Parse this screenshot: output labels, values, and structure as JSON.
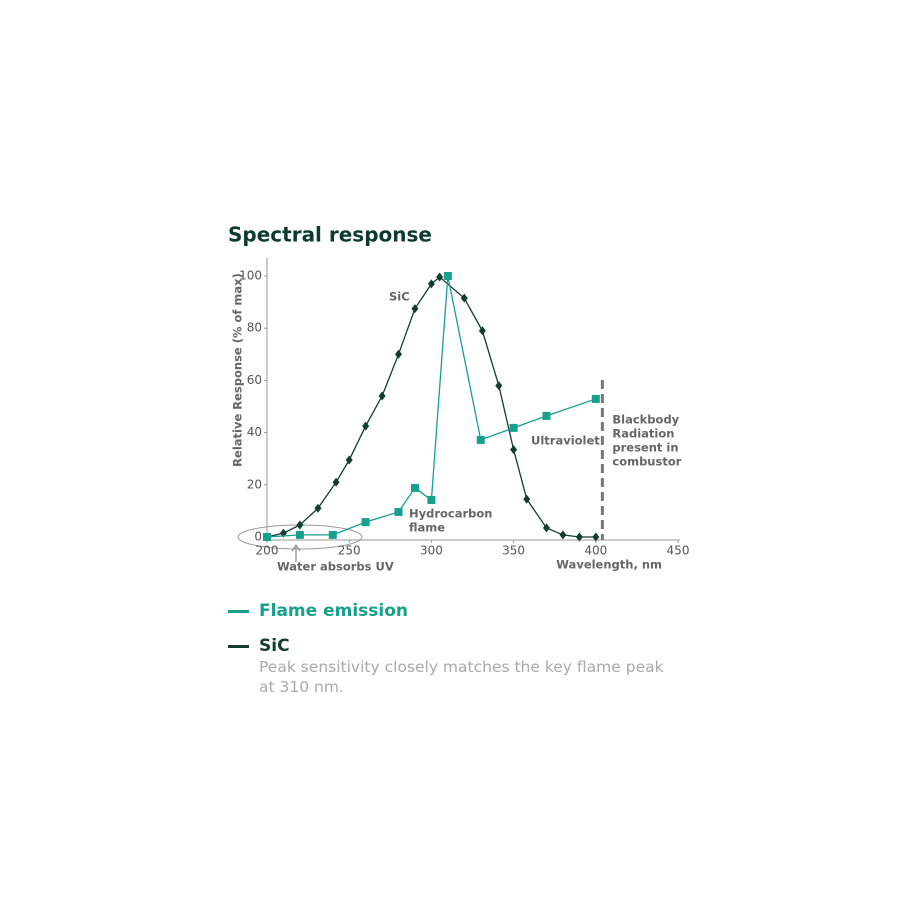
{
  "chart_data": {
    "type": "line",
    "title": "Spectral response",
    "y_label": "Relative Response (% of max)",
    "x_label": "Wavelength, nm",
    "xlim": [
      200,
      450
    ],
    "xticks": [
      200,
      250,
      300,
      350,
      400,
      450
    ],
    "ylim": [
      0,
      100
    ],
    "yticks": [
      0,
      20,
      40,
      60,
      80,
      100
    ],
    "grid": false,
    "series": [
      {
        "name": "Flame emission",
        "color": "#17a08c",
        "marker": "square",
        "x": [
          200,
          220,
          240,
          260,
          280,
          290,
          300,
          310,
          330,
          350,
          370,
          400
        ],
        "values": [
          0,
          0.8,
          0.8,
          5.7,
          9.6,
          18.8,
          14.2,
          100,
          37.2,
          41.8,
          46.4,
          52.9
        ]
      },
      {
        "name": "SiC",
        "color": "#123d2f",
        "marker": "diamond",
        "x": [
          200,
          210,
          220,
          231,
          242,
          250,
          260,
          270,
          280,
          290,
          300,
          305,
          320,
          331,
          341,
          350,
          358,
          370,
          380,
          390,
          400
        ],
        "values": [
          0,
          1.5,
          4.6,
          11,
          21,
          29.5,
          42.5,
          54,
          70,
          87.5,
          97,
          99.6,
          91.5,
          79,
          58,
          33.5,
          14.5,
          3.5,
          0.8,
          0,
          0
        ]
      }
    ],
    "reference_line": {
      "x": 404,
      "label": [
        "Blackbody",
        "Radiation",
        "present in",
        "combustor"
      ]
    },
    "annotations": {
      "sic": "SiC",
      "hydrocarbon": [
        "Hydrocarbon",
        "flame"
      ],
      "ultraviolet": "Ultraviolet",
      "water": "Water absorbs UV"
    },
    "description": "Peak sensitivity closely matches the key flame peak at 310 nm."
  }
}
